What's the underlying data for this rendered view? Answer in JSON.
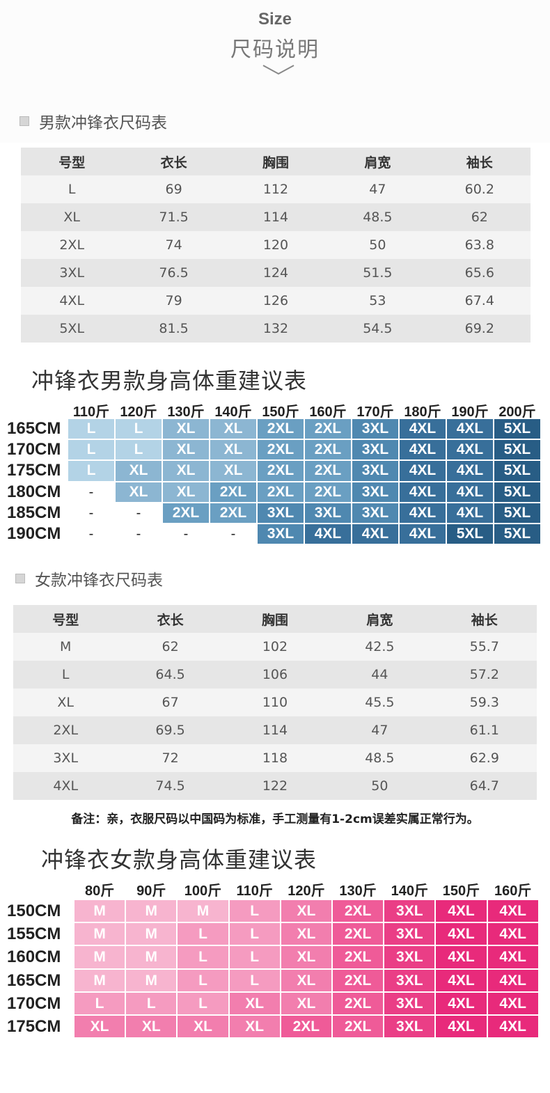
{
  "header": {
    "size_en": "Size",
    "size_cn": "尺码说明"
  },
  "men_table": {
    "title": "男款冲锋衣尺码表",
    "columns": [
      "号型",
      "衣长",
      "胸围",
      "肩宽",
      "袖长"
    ],
    "rows": [
      [
        "L",
        "69",
        "112",
        "47",
        "60.2"
      ],
      [
        "XL",
        "71.5",
        "114",
        "48.5",
        "62"
      ],
      [
        "2XL",
        "74",
        "120",
        "50",
        "63.8"
      ],
      [
        "3XL",
        "76.5",
        "124",
        "51.5",
        "65.6"
      ],
      [
        "4XL",
        "79",
        "126",
        "53",
        "67.4"
      ],
      [
        "5XL",
        "81.5",
        "132",
        "54.5",
        "69.2"
      ]
    ]
  },
  "men_rec": {
    "title": "冲锋衣男款身高体重建议表",
    "weights": [
      "110斤",
      "120斤",
      "130斤",
      "140斤",
      "150斤",
      "160斤",
      "170斤",
      "180斤",
      "190斤",
      "200斤"
    ],
    "heights": [
      "165CM",
      "170CM",
      "175CM",
      "180CM",
      "185CM",
      "190CM"
    ],
    "cells": [
      [
        "L",
        "L",
        "XL",
        "XL",
        "2XL",
        "2XL",
        "3XL",
        "4XL",
        "4XL",
        "5XL"
      ],
      [
        "L",
        "L",
        "XL",
        "XL",
        "2XL",
        "2XL",
        "3XL",
        "4XL",
        "4XL",
        "5XL"
      ],
      [
        "L",
        "XL",
        "XL",
        "XL",
        "2XL",
        "2XL",
        "3XL",
        "4XL",
        "4XL",
        "5XL"
      ],
      [
        "-",
        "XL",
        "XL",
        "2XL",
        "2XL",
        "2XL",
        "3XL",
        "4XL",
        "4XL",
        "5XL"
      ],
      [
        "-",
        "-",
        "2XL",
        "2XL",
        "3XL",
        "3XL",
        "3XL",
        "4XL",
        "4XL",
        "5XL"
      ],
      [
        "-",
        "-",
        "-",
        "-",
        "3XL",
        "4XL",
        "4XL",
        "4XL",
        "5XL",
        "5XL"
      ]
    ],
    "colors": {
      "L": "#b3d3e6",
      "XL": "#8cb6d2",
      "2XL": "#6a9fc2",
      "3XL": "#4f88b0",
      "4XL": "#386f9a",
      "5XL": "#285d85"
    }
  },
  "women_table": {
    "title": "女款冲锋衣尺码表",
    "columns": [
      "号型",
      "衣长",
      "胸围",
      "肩宽",
      "袖长"
    ],
    "rows": [
      [
        "M",
        "62",
        "102",
        "42.5",
        "55.7"
      ],
      [
        "L",
        "64.5",
        "106",
        "44",
        "57.2"
      ],
      [
        "XL",
        "67",
        "110",
        "45.5",
        "59.3"
      ],
      [
        "2XL",
        "69.5",
        "114",
        "47",
        "61.1"
      ],
      [
        "3XL",
        "72",
        "118",
        "48.5",
        "62.9"
      ],
      [
        "4XL",
        "74.5",
        "122",
        "50",
        "64.7"
      ]
    ]
  },
  "note": "备注：亲，衣服尺码以中国码为标准，手工测量有1-2cm误差实属正常行为。",
  "women_rec": {
    "title": "冲锋衣女款身高体重建议表",
    "weights": [
      "80斤",
      "90斤",
      "100斤",
      "110斤",
      "120斤",
      "130斤",
      "140斤",
      "150斤",
      "160斤"
    ],
    "heights": [
      "150CM",
      "155CM",
      "160CM",
      "165CM",
      "170CM",
      "175CM"
    ],
    "cells": [
      [
        "M",
        "M",
        "M",
        "L",
        "XL",
        "2XL",
        "3XL",
        "4XL",
        "4XL"
      ],
      [
        "M",
        "M",
        "L",
        "L",
        "XL",
        "2XL",
        "3XL",
        "4XL",
        "4XL"
      ],
      [
        "M",
        "M",
        "L",
        "L",
        "XL",
        "2XL",
        "3XL",
        "4XL",
        "4XL"
      ],
      [
        "M",
        "M",
        "L",
        "L",
        "XL",
        "2XL",
        "3XL",
        "4XL",
        "4XL"
      ],
      [
        "L",
        "L",
        "L",
        "XL",
        "XL",
        "2XL",
        "3XL",
        "4XL",
        "4XL"
      ],
      [
        "XL",
        "XL",
        "XL",
        "XL",
        "2XL",
        "2XL",
        "3XL",
        "4XL",
        "4XL"
      ]
    ],
    "colors": {
      "M": "#f7b4cf",
      "L": "#f59bc0",
      "XL": "#f27eae",
      "2XL": "#ef5b98",
      "3XL": "#ea3e86",
      "4XL": "#e82a7b"
    }
  }
}
